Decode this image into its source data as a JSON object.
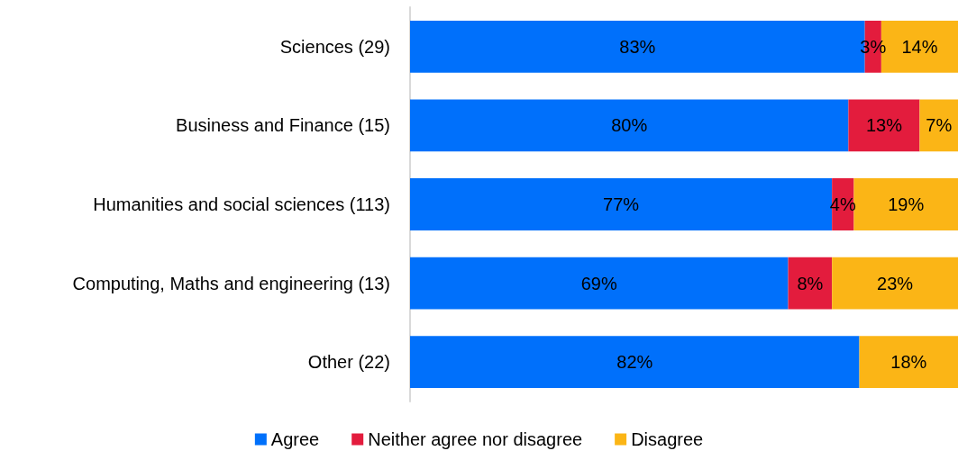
{
  "chart_data": {
    "type": "bar",
    "orientation": "horizontal",
    "stacked": true,
    "categories": [
      "Sciences (29)",
      "Business and Finance (15)",
      "Humanities and social sciences (113)",
      "Computing, Maths and engineering (13)",
      "Other (22)"
    ],
    "series": [
      {
        "name": "Agree",
        "color": "#0070fb",
        "values": [
          83,
          80,
          77,
          69,
          82
        ],
        "value_labels": [
          "83%",
          "80%",
          "77%",
          "69%",
          "82%"
        ]
      },
      {
        "name": "Neither agree nor disagree",
        "color": "#e31c3d",
        "values": [
          3,
          13,
          4,
          8,
          null
        ],
        "value_labels": [
          "3%",
          "13%",
          "4%",
          "8%",
          null
        ]
      },
      {
        "name": "Disagree",
        "color": "#fbb516",
        "values": [
          14,
          7,
          19,
          23,
          18
        ],
        "value_labels": [
          "14%",
          "7%",
          "19%",
          "23%",
          "18%"
        ]
      }
    ],
    "xlim": [
      0,
      100
    ],
    "tick_labels": "y",
    "legend": "bottom"
  }
}
